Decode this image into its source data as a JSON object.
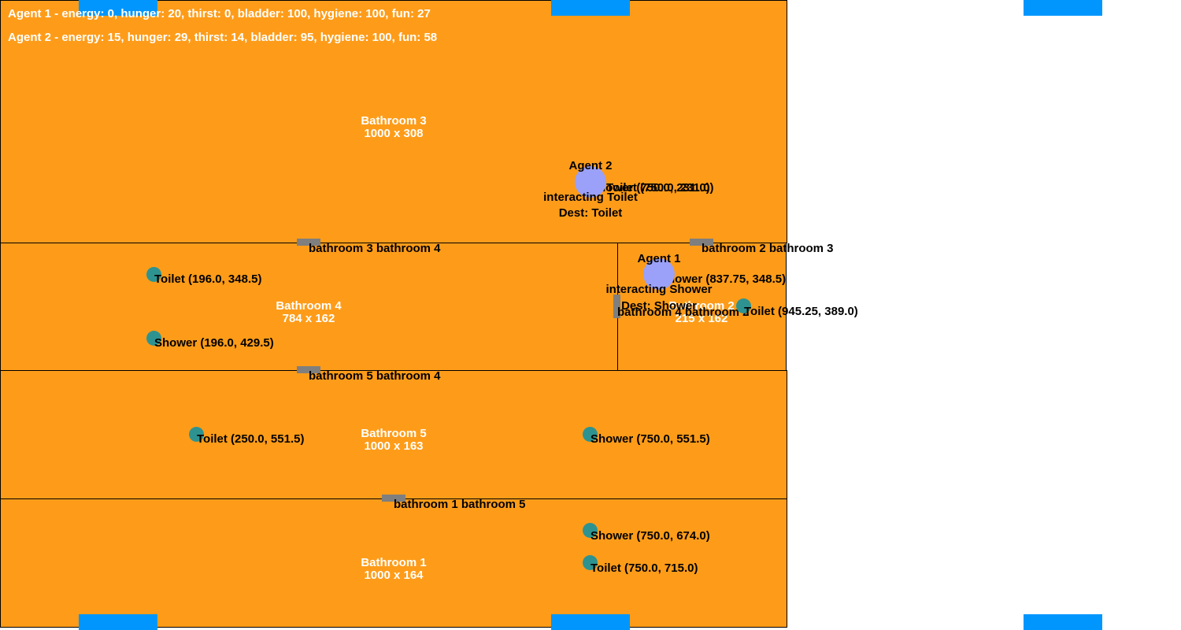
{
  "stats": {
    "agent1": "Agent 1 - energy: 0, hunger: 20, thirst: 0, bladder: 100, hygiene: 100, fun: 27",
    "agent2": "Agent 2 - energy: 15, hunger: 29, thirst: 14, bladder: 95, hygiene: 100, fun: 58"
  },
  "rooms": {
    "bathroom3": {
      "name": "Bathroom 3",
      "size": "1000 x 308"
    },
    "bathroom4": {
      "name": "Bathroom 4",
      "size": "784 x 162"
    },
    "bathroom2": {
      "name": "Bathroom 2",
      "size": "215 x 162"
    },
    "bathroom5": {
      "name": "Bathroom 5",
      "size": "1000 x 163"
    },
    "bathroom1": {
      "name": "Bathroom 1",
      "size": "1000 x 164"
    }
  },
  "doors": {
    "d34": "bathroom 3 bathroom 4",
    "d23": "bathroom 2 bathroom 3",
    "d42": "bathroom 4 bathroom 2",
    "d54": "bathroom 5 bathroom 4",
    "d15": "bathroom 1 bathroom 5"
  },
  "objects": {
    "b3_shower": "Shower (750.0, 231.0)",
    "b3_toilet": "Toilet (750.0, 231.0)",
    "b4_toilet": "Toilet (196.0, 348.5)",
    "b4_shower": "Shower (196.0, 429.5)",
    "b2_shower": "Shower (837.75, 348.5)",
    "b2_toilet": "Toilet (945.25, 389.0)",
    "b5_toilet": "Toilet (250.0, 551.5)",
    "b5_shower": "Shower (750.0, 551.5)",
    "b1_shower": "Shower (750.0, 674.0)",
    "b1_toilet": "Toilet (750.0, 715.0)"
  },
  "agents": {
    "agent1": {
      "name": "Agent 1",
      "status": "interacting Shower",
      "dest": "Dest: Shower"
    },
    "agent2": {
      "name": "Agent 2",
      "status": "interacting Toilet",
      "dest": "Dest: Toilet"
    }
  },
  "colors": {
    "room": "#fe9c19",
    "door": "#7f7f7f",
    "object": "#2e9390",
    "agent": "#9ba0f9",
    "edge_bar": "#0196fe"
  }
}
